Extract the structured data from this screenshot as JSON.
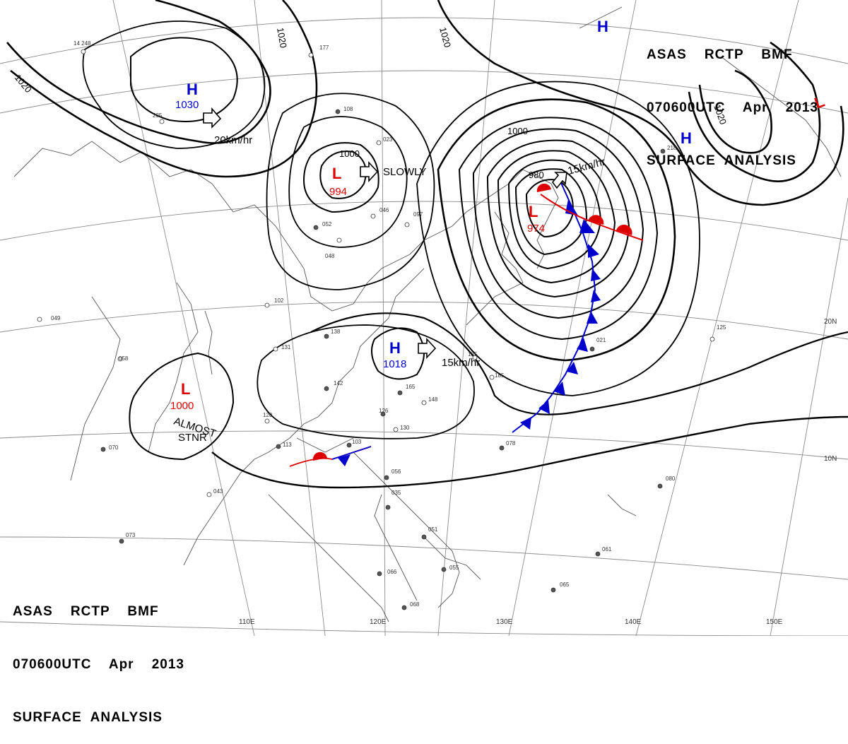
{
  "header_top": {
    "line1": "ASAS    RCTP    BMF",
    "line2": "070600UTC    Apr    2013",
    "line3": "SURFACE  ANALYSIS"
  },
  "header_bottom": {
    "line1": "ASAS    RCTP    BMF",
    "line2": "070600UTC    Apr    2013",
    "line3": "SURFACE  ANALYSIS"
  },
  "longitude_labels": [
    "110E",
    "120E",
    "130E",
    "140E",
    "150E"
  ],
  "latitude_labels": [
    "20N",
    "10N"
  ],
  "isobar_labels": [
    "1020",
    "1020",
    "1020",
    "1020",
    "1000",
    "1000",
    "980"
  ],
  "pressure_centers": [
    {
      "type": "H",
      "value": "1030",
      "color": "#0000cc",
      "value_color": "#0000cc"
    },
    {
      "type": "L",
      "value": "994",
      "color": "#dd0000",
      "value_color": "#dd0000"
    },
    {
      "type": "L",
      "value": "974",
      "color": "#dd0000",
      "value_color": "#dd0000"
    },
    {
      "type": "H",
      "value": "1018",
      "color": "#0000cc",
      "value_color": "#0000cc"
    },
    {
      "type": "L",
      "value": "1000",
      "color": "#dd0000",
      "value_color": "#dd0000"
    },
    {
      "type": "H",
      "value": "",
      "color": "#0000cc",
      "value_color": "#0000cc"
    },
    {
      "type": "H",
      "value": "",
      "color": "#0000cc",
      "value_color": "#0000cc"
    },
    {
      "type": "L",
      "value": "",
      "color": "#dd0000",
      "value_color": "#dd0000"
    }
  ],
  "movement_labels": [
    "20km/hr",
    "SLOWLY",
    "15km/hr",
    "15km/hr",
    "ALMOST",
    "STNR"
  ],
  "colors": {
    "high_pressure": "#0000cc",
    "low_pressure": "#dd0000",
    "cold_front": "#0000cc",
    "warm_front": "#dd0000",
    "isobar": "#000000",
    "coastline": "#555555",
    "graticule": "#777777"
  },
  "fronts": [
    {
      "type": "cold",
      "label": "cold-front-east"
    },
    {
      "type": "warm",
      "label": "warm-front-east"
    },
    {
      "type": "stationary",
      "label": "stationary-front-south"
    }
  ],
  "station_samples": [
    "14 248",
    "235",
    "177",
    "108",
    "023",
    "046",
    "097",
    "052",
    "048",
    "102",
    "138",
    "131",
    "142",
    "165",
    "148",
    "120",
    "126",
    "130",
    "113",
    "103",
    "056",
    "043",
    "035",
    "051",
    "055",
    "066",
    "068",
    "078",
    "080",
    "061",
    "065",
    "125",
    "218",
    "070",
    "058",
    "049",
    "073",
    "021",
    "135",
    "185"
  ]
}
